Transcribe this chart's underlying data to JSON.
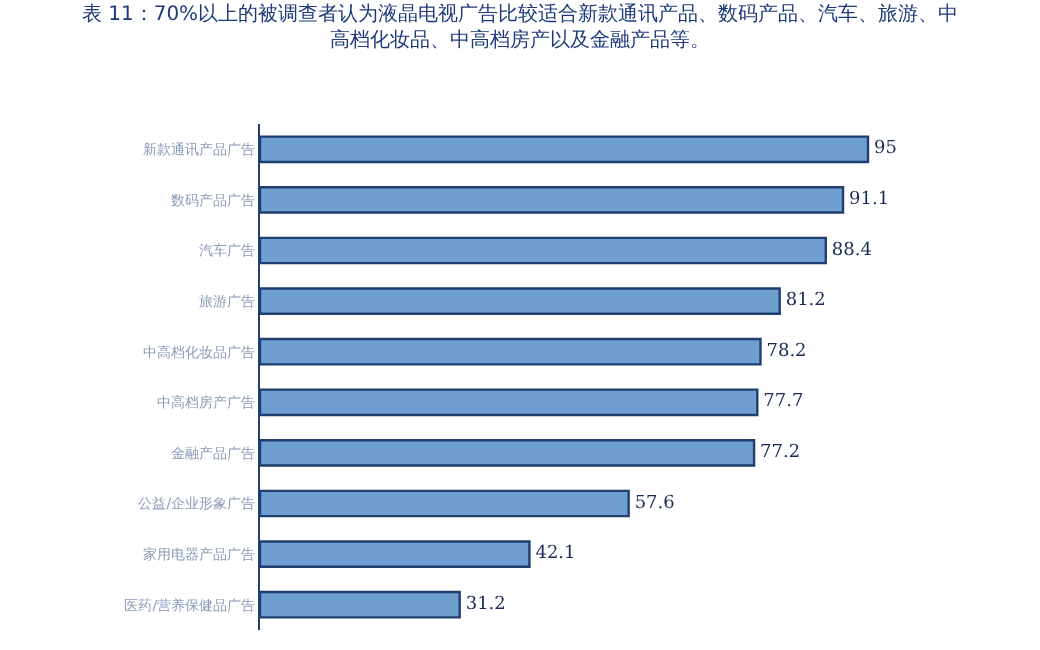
{
  "chart_data": {
    "type": "bar",
    "orientation": "horizontal",
    "title": "表 11：70%以上的被调查者认为液晶电视广告比较适合新款通讯产品、数码产品、汽车、旅游、中高档化妆品、中高档房产以及金融产品等。",
    "categories": [
      "新款通讯产品广告",
      "数码产品广告",
      "汽车广告",
      "旅游广告",
      "中高档化妆品广告",
      "中高档房产广告",
      "金融产品广告",
      "公益/企业形象广告",
      "家用电器产品广告",
      "医药/营养保健品广告"
    ],
    "values": [
      95,
      91.1,
      88.4,
      81.2,
      78.2,
      77.7,
      77.2,
      57.6,
      42.1,
      31.2
    ],
    "color": "#6f9fd0",
    "data_labels": true
  }
}
